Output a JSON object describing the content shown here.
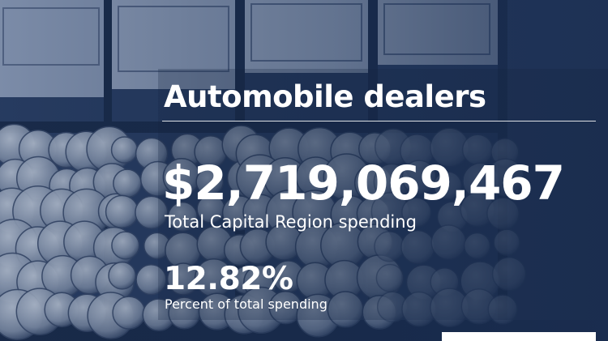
{
  "header": {
    "title": "Automobile dealers"
  },
  "stats": [
    {
      "value": "$2,719,069,467",
      "label": "Total Capital Region spending"
    },
    {
      "value": "12.82%",
      "label": "Percent of total spending"
    }
  ]
}
